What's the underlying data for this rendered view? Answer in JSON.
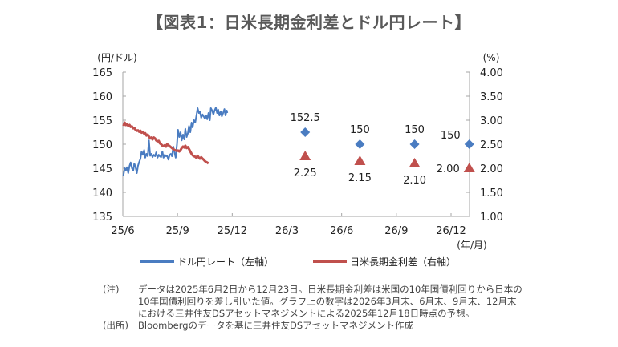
{
  "title": "【図表1：日米長期金利差とドル円レート】",
  "chart_data": {
    "type": "line",
    "title": "【図表1：日米長期金利差とドル円レート】",
    "x_unit": "(年/月)",
    "x_ticks": [
      "25/6",
      "25/9",
      "25/12",
      "26/3",
      "26/6",
      "26/9",
      "26/12"
    ],
    "left_axis": {
      "unit": "(円/ドル)",
      "ylim": [
        135,
        165
      ],
      "ticks": [
        "135",
        "140",
        "145",
        "150",
        "155",
        "160",
        "165"
      ]
    },
    "right_axis": {
      "unit": "(%)",
      "ylim": [
        1.0,
        4.0
      ],
      "ticks": [
        "1.00",
        "1.50",
        "2.00",
        "2.50",
        "3.00",
        "3.50",
        "4.00"
      ]
    },
    "grid": false,
    "legend_position": "bottom",
    "series": [
      {
        "name": "ドル円レート（左軸）",
        "axis": "left",
        "color": "#4a7cc1",
        "x_months": [
          0.03,
          0.1,
          0.17,
          0.23,
          0.3,
          0.37,
          0.43,
          0.5,
          0.57,
          0.63,
          0.7,
          0.77,
          0.83,
          0.9,
          0.97,
          1.03,
          1.1,
          1.17,
          1.23,
          1.3,
          1.37,
          1.43,
          1.5,
          1.57,
          1.63,
          1.7,
          1.77,
          1.83,
          1.9,
          1.97,
          2.03,
          2.1,
          2.17,
          2.23,
          2.3,
          2.37,
          2.43,
          2.5,
          2.57,
          2.63,
          2.7,
          2.77,
          2.83,
          2.9,
          2.97,
          3.03,
          3.1,
          3.17,
          3.23,
          3.3,
          3.37,
          3.43,
          3.5,
          3.57,
          3.63,
          3.7,
          3.77,
          3.83,
          3.9,
          3.97,
          4.03,
          4.1,
          4.17,
          4.23,
          4.3,
          4.37,
          4.43,
          4.5,
          4.57,
          4.63,
          4.7,
          4.77,
          4.83,
          4.9,
          4.97,
          5.03,
          5.1,
          5.17,
          5.23,
          5.3,
          5.37,
          5.43,
          5.5,
          5.57,
          5.63,
          5.7,
          5.73
        ],
        "values": [
          143.5,
          145.0,
          144.6,
          145.2,
          144.0,
          145.5,
          146.2,
          145.0,
          144.5,
          146.0,
          145.2,
          144.0,
          145.5,
          146.3,
          147.0,
          148.5,
          147.8,
          148.8,
          147.2,
          148.0,
          147.5,
          150.8,
          147.6,
          148.0,
          147.3,
          147.8,
          147.5,
          148.3,
          147.2,
          147.8,
          147.5,
          147.3,
          148.5,
          147.2,
          147.8,
          147.5,
          147.6,
          146.8,
          147.8,
          148.0,
          147.5,
          149.5,
          148.3,
          147.2,
          150.0,
          153.0,
          151.5,
          152.5,
          150.8,
          152.0,
          151.0,
          153.2,
          151.5,
          152.3,
          153.8,
          152.5,
          154.5,
          153.5,
          155.0,
          154.5,
          155.8,
          157.5,
          156.5,
          156.8,
          155.5,
          156.2,
          155.8,
          155.3,
          156.0,
          155.2,
          156.5,
          155.0,
          157.5,
          157.0,
          156.2,
          157.0,
          157.6,
          156.5,
          157.2,
          156.0,
          156.8,
          155.8,
          156.5,
          157.3,
          156.0,
          157.0,
          156.5
        ]
      },
      {
        "name": "日米長期金利差（右軸）",
        "axis": "right",
        "color": "#c0504d",
        "x_months": [
          0.03,
          0.1,
          0.17,
          0.23,
          0.3,
          0.37,
          0.43,
          0.5,
          0.57,
          0.63,
          0.7,
          0.77,
          0.83,
          0.9,
          0.97,
          1.03,
          1.1,
          1.17,
          1.23,
          1.3,
          1.37,
          1.43,
          1.5,
          1.57,
          1.63,
          1.7,
          1.77,
          1.83,
          1.9,
          1.97,
          2.03,
          2.1,
          2.17,
          2.23,
          2.3,
          2.37,
          2.43,
          2.5,
          2.57,
          2.63,
          2.7,
          2.77,
          2.83,
          2.9,
          2.97,
          3.03,
          3.1,
          3.17,
          3.23,
          3.3,
          3.37,
          3.43,
          3.5,
          3.57,
          3.63,
          3.7,
          3.77,
          3.83,
          3.9,
          3.97,
          4.03,
          4.1,
          4.17,
          4.23,
          4.3,
          4.37,
          4.43,
          4.5,
          4.57,
          4.63,
          4.7
        ],
        "values": [
          2.88,
          2.95,
          2.9,
          2.92,
          2.88,
          2.9,
          2.86,
          2.87,
          2.83,
          2.84,
          2.8,
          2.78,
          2.79,
          2.76,
          2.78,
          2.74,
          2.76,
          2.72,
          2.73,
          2.68,
          2.7,
          2.66,
          2.62,
          2.64,
          2.6,
          2.64,
          2.62,
          2.58,
          2.56,
          2.57,
          2.52,
          2.5,
          2.47,
          2.46,
          2.48,
          2.45,
          2.5,
          2.48,
          2.46,
          2.44,
          2.42,
          2.4,
          2.38,
          2.37,
          2.36,
          2.37,
          2.35,
          2.38,
          2.42,
          2.45,
          2.43,
          2.47,
          2.42,
          2.44,
          2.4,
          2.35,
          2.3,
          2.27,
          2.25,
          2.24,
          2.22,
          2.26,
          2.22,
          2.2,
          2.23,
          2.2,
          2.18,
          2.15,
          2.13,
          2.12,
          2.1
        ]
      }
    ],
    "forecasts": {
      "x_months": [
        10,
        13,
        16,
        19
      ],
      "usd_jpy": {
        "name": "ドル円レート 予想",
        "color": "#4a7cc1",
        "marker": "diamond",
        "values": [
          152.5,
          150,
          150,
          150
        ],
        "labels": [
          "152.5",
          "150",
          "150",
          "150"
        ]
      },
      "spread": {
        "name": "日米長期金利差 予想",
        "color": "#c0504d",
        "marker": "triangle",
        "values": [
          2.25,
          2.15,
          2.1,
          2.0
        ],
        "labels": [
          "2.25",
          "2.15",
          "2.10",
          "2.00"
        ]
      }
    }
  },
  "legend": [
    {
      "label": "ドル円レート（左軸）",
      "color": "#4a7cc1"
    },
    {
      "label": "日米長期金利差（右軸）",
      "color": "#c0504d"
    }
  ],
  "notes": [
    {
      "key": "(注)",
      "text": "データは2025年6月2日から12月23日。日米長期金利差は米国の10年国債利回りから日本の10年国債利回りを差し引いた値。グラフ上の数字は2026年3月末、6月末、9月末、12月末における三井住友DSアセットマネジメントによる2025年12月18日時点の予想。"
    },
    {
      "key": "(出所)",
      "text": "Bloombergのデータを基に三井住友DSアセットマネジメント作成"
    }
  ]
}
